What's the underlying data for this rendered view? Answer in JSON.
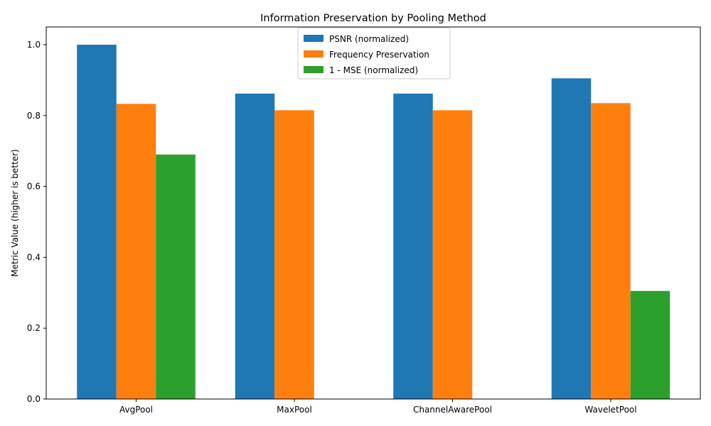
{
  "chart_data": {
    "type": "bar",
    "title": "Information Preservation by Pooling Method",
    "xlabel": "",
    "ylabel": "Metric Value (higher is better)",
    "ylim": [
      0,
      1.05
    ],
    "yticks": [
      "0.0",
      "0.2",
      "0.4",
      "0.6",
      "0.8",
      "1.0"
    ],
    "categories": [
      "AvgPool",
      "MaxPool",
      "ChannelAwarePool",
      "WaveletPool"
    ],
    "series": [
      {
        "name": "PSNR (normalized)",
        "color": "#1f77b4",
        "values": [
          1.0,
          0.862,
          0.862,
          0.905
        ]
      },
      {
        "name": "Frequency Preservation",
        "color": "#ff7f0e",
        "values": [
          0.833,
          0.815,
          0.815,
          0.835
        ]
      },
      {
        "name": "1 - MSE (normalized)",
        "color": "#2ca02c",
        "values": [
          0.69,
          0.0,
          0.0,
          0.305
        ]
      }
    ],
    "legend_position": "top-center",
    "grid": false
  }
}
